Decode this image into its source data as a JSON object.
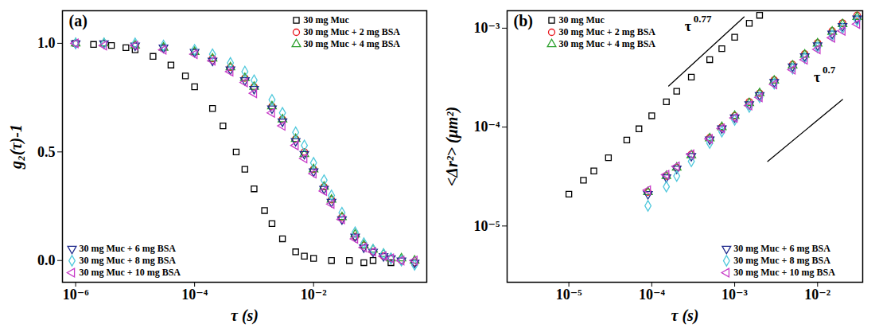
{
  "chart_data": [
    {
      "type": "scatter",
      "panel_label": "(a)",
      "x_label": "τ (s)",
      "y_label": "g₂(τ)-1",
      "log": "x",
      "xlim": [
        6e-07,
        0.8
      ],
      "xticks": [
        {
          "value": 1e-06,
          "label": "10⁻⁶"
        },
        {
          "value": 0.0001,
          "label": "10⁻⁴"
        },
        {
          "value": 0.01,
          "label": "10⁻²"
        }
      ],
      "ylim": [
        -0.1,
        1.15
      ],
      "yticks": [
        {
          "value": 0,
          "label": "0.0"
        },
        {
          "value": 0.5,
          "label": "0.5"
        },
        {
          "value": 1,
          "label": "1.0"
        }
      ],
      "series": [
        {
          "name": "30 mg Muc",
          "color": "#000000",
          "marker": "square",
          "legend": "top-right",
          "x": [
            1e-06,
            2e-06,
            4e-06,
            7e-06,
            1e-05,
            2e-05,
            4e-05,
            7e-05,
            0.0001,
            0.0002,
            0.0003,
            0.0005,
            0.0007,
            0.001,
            0.0015,
            0.002,
            0.003,
            0.005,
            0.007,
            0.01,
            0.02,
            0.04,
            0.07,
            0.1,
            0.2
          ],
          "values": [
            1.0,
            0.995,
            0.99,
            0.98,
            0.97,
            0.94,
            0.9,
            0.85,
            0.8,
            0.7,
            0.62,
            0.5,
            0.42,
            0.33,
            0.23,
            0.17,
            0.1,
            0.04,
            0.02,
            0.01,
            0.0,
            0.0,
            -0.01,
            0.0,
            -0.01
          ]
        },
        {
          "name": "30 mg Muc + 2 mg BSA",
          "color": "#e8141b",
          "marker": "circle",
          "legend": "top-right",
          "x": [
            1e-06,
            3e-06,
            1e-05,
            3e-05,
            0.0001,
            0.0002,
            0.0004,
            0.0007,
            0.001,
            0.002,
            0.003,
            0.005,
            0.007,
            0.01,
            0.015,
            0.02,
            0.03,
            0.05,
            0.07,
            0.1,
            0.15,
            0.2,
            0.3,
            0.5
          ],
          "values": [
            1.0,
            1.0,
            0.99,
            0.98,
            0.96,
            0.93,
            0.89,
            0.84,
            0.8,
            0.71,
            0.65,
            0.56,
            0.5,
            0.42,
            0.34,
            0.28,
            0.2,
            0.11,
            0.07,
            0.04,
            0.02,
            0.01,
            0.0,
            -0.01
          ]
        },
        {
          "name": "30 mg Muc + 4 mg BSA",
          "color": "#2ca02c",
          "marker": "triangle-up",
          "legend": "top-right",
          "x": [
            1e-06,
            3e-06,
            1e-05,
            3e-05,
            0.0001,
            0.0002,
            0.0004,
            0.0007,
            0.001,
            0.002,
            0.003,
            0.005,
            0.007,
            0.01,
            0.015,
            0.02,
            0.03,
            0.05,
            0.07,
            0.1,
            0.15,
            0.2,
            0.3,
            0.5
          ],
          "values": [
            1.0,
            1.0,
            0.99,
            0.98,
            0.96,
            0.93,
            0.89,
            0.84,
            0.8,
            0.71,
            0.65,
            0.56,
            0.49,
            0.42,
            0.34,
            0.28,
            0.2,
            0.12,
            0.07,
            0.05,
            0.03,
            0.01,
            0.01,
            0.0
          ]
        },
        {
          "name": "30 mg Muc + 6 mg BSA",
          "color": "#1f2a8c",
          "marker": "triangle-down",
          "legend": "bottom-left",
          "x": [
            1e-06,
            3e-06,
            1e-05,
            3e-05,
            0.0001,
            0.0002,
            0.0004,
            0.0007,
            0.001,
            0.002,
            0.003,
            0.005,
            0.007,
            0.01,
            0.015,
            0.02,
            0.03,
            0.05,
            0.07,
            0.1,
            0.15,
            0.2,
            0.3,
            0.5
          ],
          "values": [
            1.0,
            1.0,
            0.99,
            0.98,
            0.96,
            0.92,
            0.88,
            0.83,
            0.79,
            0.7,
            0.64,
            0.55,
            0.49,
            0.41,
            0.33,
            0.27,
            0.19,
            0.11,
            0.06,
            0.04,
            0.02,
            0.01,
            0.0,
            -0.01
          ]
        },
        {
          "name": "30 mg Muc + 8 mg BSA",
          "color": "#4fc8dc",
          "marker": "diamond",
          "legend": "bottom-left",
          "x": [
            1e-06,
            3e-06,
            1e-05,
            3e-05,
            0.0001,
            0.0002,
            0.0004,
            0.0007,
            0.001,
            0.002,
            0.003,
            0.005,
            0.007,
            0.01,
            0.015,
            0.02,
            0.03,
            0.05,
            0.07,
            0.1,
            0.15,
            0.2,
            0.3,
            0.5
          ],
          "values": [
            1.0,
            1.0,
            1.0,
            0.99,
            0.97,
            0.95,
            0.91,
            0.87,
            0.83,
            0.74,
            0.68,
            0.59,
            0.53,
            0.45,
            0.37,
            0.3,
            0.22,
            0.13,
            0.08,
            0.05,
            0.03,
            0.01,
            0.0,
            -0.02
          ]
        },
        {
          "name": "30 mg Muc + 10 mg BSA",
          "color": "#c83cc8",
          "marker": "triangle-left",
          "legend": "bottom-left",
          "x": [
            1e-06,
            3e-06,
            1e-05,
            3e-05,
            0.0001,
            0.0002,
            0.0004,
            0.0007,
            0.001,
            0.002,
            0.003,
            0.005,
            0.007,
            0.01,
            0.015,
            0.02,
            0.03,
            0.05,
            0.07,
            0.1,
            0.15,
            0.2,
            0.3,
            0.5
          ],
          "values": [
            1.0,
            0.99,
            0.99,
            0.97,
            0.95,
            0.92,
            0.87,
            0.82,
            0.77,
            0.68,
            0.62,
            0.53,
            0.47,
            0.4,
            0.32,
            0.26,
            0.19,
            0.1,
            0.06,
            0.04,
            0.02,
            0.01,
            0.0,
            0.0
          ]
        }
      ]
    },
    {
      "type": "scatter",
      "panel_label": "(b)",
      "x_label": "τ (s)",
      "y_label": "<Δr²> (μm²)",
      "log": true,
      "xlim": [
        1.8e-06,
        0.035
      ],
      "xticks": [
        {
          "value": 1e-05,
          "label": "10⁻⁵"
        },
        {
          "value": 0.0001,
          "label": "10⁻⁴"
        },
        {
          "value": 0.001,
          "label": "10⁻³"
        },
        {
          "value": 0.01,
          "label": "10⁻²"
        }
      ],
      "ylim": [
        2.7e-06,
        0.0015
      ],
      "yticks": [
        {
          "value": 1e-05,
          "label": "10⁻⁵"
        },
        {
          "value": 0.0001,
          "label": "10⁻⁴"
        },
        {
          "value": 0.001,
          "label": "10⁻³"
        }
      ],
      "annotations": [
        {
          "text": "τ",
          "superscript": "0.77",
          "x": 0.00025,
          "y": 0.00104,
          "line": {
            "x": [
              0.00016,
              0.0013
            ],
            "y": [
              0.00026,
              0.0013
            ]
          }
        },
        {
          "text": "τ",
          "superscript": "0.7",
          "x": 0.009,
          "y": 0.00032,
          "line": {
            "x": [
              0.0025,
              0.02
            ],
            "y": [
              4.5e-05,
              0.00019
            ]
          }
        }
      ],
      "series": [
        {
          "name": "30 mg Muc",
          "color": "#000000",
          "marker": "square",
          "legend": "top-left",
          "x": [
            1e-05,
            1.5e-05,
            2e-05,
            3e-05,
            5e-05,
            7e-05,
            0.0001,
            0.00015,
            0.0002,
            0.0003,
            0.0005,
            0.0007,
            0.001,
            0.0015,
            0.002
          ],
          "values": [
            2.1e-05,
            2.9e-05,
            3.6e-05,
            4.9e-05,
            7.4e-05,
            9.6e-05,
            0.00013,
            0.00018,
            0.00023,
            0.00032,
            0.00048,
            0.00062,
            0.00081,
            0.00112,
            0.00135
          ]
        },
        {
          "name": "30 mg Muc + 2 mg BSA",
          "color": "#e8141b",
          "marker": "circle",
          "legend": "top-left",
          "x": [
            9e-05,
            0.00015,
            0.0002,
            0.0003,
            0.0005,
            0.0007,
            0.001,
            0.0015,
            0.002,
            0.003,
            0.005,
            0.007,
            0.01,
            0.015,
            0.02,
            0.03
          ],
          "values": [
            2.2e-05,
            3.2e-05,
            3.9e-05,
            5.3e-05,
            7.8e-05,
            0.0001,
            0.00013,
            0.00018,
            0.00022,
            0.0003,
            0.00043,
            0.00055,
            0.00071,
            0.00094,
            0.00113,
            0.00135
          ]
        },
        {
          "name": "30 mg Muc + 4 mg BSA",
          "color": "#2ca02c",
          "marker": "triangle-up",
          "legend": "top-left",
          "x": [
            9e-05,
            0.00015,
            0.0002,
            0.0003,
            0.0005,
            0.0007,
            0.001,
            0.0015,
            0.002,
            0.003,
            0.005,
            0.007,
            0.01,
            0.015,
            0.02,
            0.03
          ],
          "values": [
            2.2e-05,
            3.2e-05,
            3.9e-05,
            5.2e-05,
            7.7e-05,
            0.0001,
            0.00013,
            0.000175,
            0.00022,
            0.000295,
            0.00042,
            0.00054,
            0.0007,
            0.00092,
            0.0011,
            0.0013
          ]
        },
        {
          "name": "30 mg Muc + 6 mg BSA",
          "color": "#1f2a8c",
          "marker": "triangle-down",
          "legend": "bottom-right",
          "x": [
            9e-05,
            0.00015,
            0.0002,
            0.0003,
            0.0005,
            0.0007,
            0.001,
            0.0015,
            0.002,
            0.003,
            0.005,
            0.007,
            0.01,
            0.015,
            0.02,
            0.03
          ],
          "values": [
            2.1e-05,
            3.1e-05,
            3.8e-05,
            5.1e-05,
            7.5e-05,
            9.7e-05,
            0.000125,
            0.00017,
            0.00021,
            0.000285,
            0.00041,
            0.00052,
            0.00067,
            0.00088,
            0.00105,
            0.00125
          ]
        },
        {
          "name": "30 mg Muc + 8 mg BSA",
          "color": "#4fc8dc",
          "marker": "diamond",
          "legend": "bottom-right",
          "x": [
            9e-05,
            0.00015,
            0.0002,
            0.0003,
            0.0005,
            0.0007,
            0.001,
            0.0015,
            0.002,
            0.003,
            0.005,
            0.007,
            0.01,
            0.015,
            0.02,
            0.03
          ],
          "values": [
            1.6e-05,
            2.5e-05,
            3.2e-05,
            4.5e-05,
            6.9e-05,
            9e-05,
            0.000118,
            0.00016,
            0.0002,
            0.000275,
            0.00039,
            0.0005,
            0.00064,
            0.00084,
            0.001,
            0.0012
          ]
        },
        {
          "name": "30 mg Muc + 10 mg BSA",
          "color": "#c83cc8",
          "marker": "triangle-left",
          "legend": "bottom-right",
          "x": [
            9e-05,
            0.00015,
            0.0002,
            0.0003,
            0.0005,
            0.0007,
            0.001,
            0.0015,
            0.002,
            0.003,
            0.005,
            0.007,
            0.01,
            0.015,
            0.02,
            0.03
          ],
          "values": [
            2.3e-05,
            3.3e-05,
            4e-05,
            5.3e-05,
            7.6e-05,
            9.7e-05,
            0.000124,
            0.000165,
            0.0002,
            0.00027,
            0.00038,
            0.00048,
            0.00061,
            0.0008,
            0.00094,
            0.0011
          ]
        }
      ]
    }
  ]
}
